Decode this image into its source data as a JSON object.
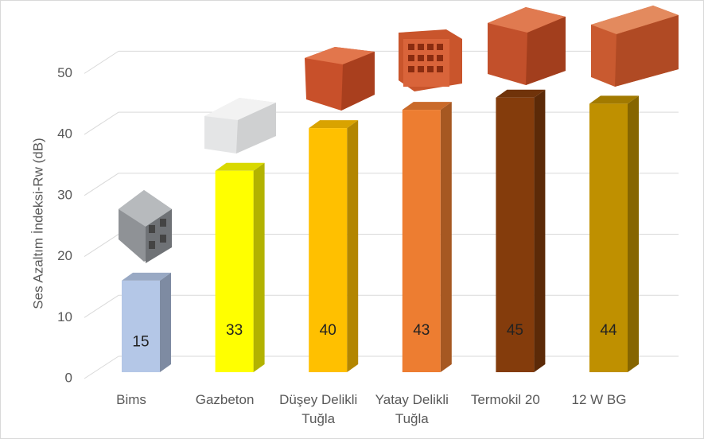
{
  "chart_data": {
    "type": "bar3d",
    "y_label": "Ses Azaltım İndeksi-Rw (dB)",
    "categories": [
      "Bims",
      "Gazbeton",
      "Düşey Delikli Tuğla",
      "Yatay Delikli Tuğla",
      "Termokil 20",
      "12 W BG"
    ],
    "values": [
      15,
      33,
      40,
      43,
      45,
      44
    ],
    "colors": [
      "#b4c7e7",
      "#ffff00",
      "#ffc000",
      "#ed7d31",
      "#843c0c",
      "#bf9000"
    ],
    "ylim": [
      0,
      55
    ],
    "yticks": [
      0,
      10,
      20,
      30,
      40,
      50
    ],
    "grid": true
  }
}
